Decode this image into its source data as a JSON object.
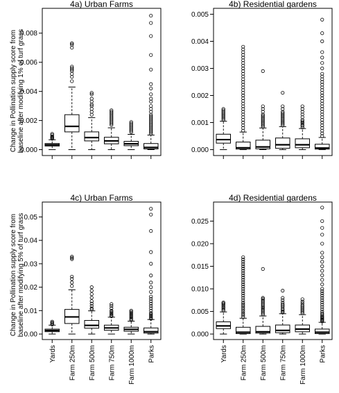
{
  "figure": {
    "ylabel_rows": [
      [
        "Change in Pollination supply score from",
        "baseline after modifying 1% of turf grass"
      ],
      [
        "Change in Pollination supply score from",
        "baseline after modifying 5% of turf grass"
      ]
    ],
    "category_labels": [
      "Yards",
      "Farm 250m",
      "Farm 500m",
      "Farm 750m",
      "Farm 1000m",
      "Parks"
    ]
  },
  "chart_data": [
    {
      "type": "box",
      "title": "4a)  Urban Farms",
      "categories": [
        "Yards",
        "Farm 250m",
        "Farm 500m",
        "Farm 750m",
        "Farm 1000m",
        "Parks"
      ],
      "ylim": [
        0,
        0.0093
      ],
      "yticks": [
        0.0,
        0.002,
        0.004,
        0.006,
        0.008
      ],
      "ytick_labels": [
        "0.000",
        "0.002",
        "0.004",
        "0.006",
        "0.008"
      ],
      "show_xlabels": false,
      "boxes": [
        {
          "category": "Yards",
          "whisker_low": 0.0,
          "q1": 0.00025,
          "median": 0.00033,
          "q3": 0.00042,
          "whisker_high": 0.00068,
          "outliers": [
            0.00075,
            0.0008,
            0.00085,
            0.0009,
            0.001,
            0.00108
          ]
        },
        {
          "category": "Farm 250m",
          "whisker_low": 0.0,
          "q1": 0.00122,
          "median": 0.0016,
          "q3": 0.0024,
          "whisker_high": 0.0043,
          "outliers": [
            0.0047,
            0.005,
            0.0052,
            0.0054,
            0.0055,
            0.0056,
            0.0057,
            0.007,
            0.0072,
            0.0073,
            0.0073
          ]
        },
        {
          "category": "Farm 500m",
          "whisker_low": 0.0,
          "q1": 0.0006,
          "median": 0.00083,
          "q3": 0.00122,
          "whisker_high": 0.0022,
          "outliers": [
            0.0024,
            0.0026,
            0.0028,
            0.003,
            0.0031,
            0.0033,
            0.0035,
            0.0038,
            0.0039
          ]
        },
        {
          "category": "Farm 750m",
          "whisker_low": 0.0,
          "q1": 0.0004,
          "median": 0.0006,
          "q3": 0.00085,
          "whisker_high": 0.0015,
          "outliers": [
            0.0017,
            0.0018,
            0.0019,
            0.002,
            0.0021,
            0.0022,
            0.0023,
            0.0024,
            0.0025,
            0.0026,
            0.0027
          ]
        },
        {
          "category": "Farm 1000m",
          "whisker_low": 0.0,
          "q1": 0.00027,
          "median": 0.0004,
          "q3": 0.00057,
          "whisker_high": 0.00105,
          "outliers": [
            0.0012,
            0.0013,
            0.0014,
            0.0015,
            0.0016,
            0.0017,
            0.0018,
            0.0019
          ]
        },
        {
          "category": "Parks",
          "whisker_low": 0.0,
          "q1": 5e-05,
          "median": 0.00015,
          "q3": 0.00042,
          "whisker_high": 0.001,
          "outliers": [
            0.0011,
            0.0012,
            0.0013,
            0.0014,
            0.0015,
            0.0016,
            0.0017,
            0.0018,
            0.0019,
            0.002,
            0.0021,
            0.0022,
            0.0023,
            0.0024,
            0.0026,
            0.0028,
            0.003,
            0.0033,
            0.0035,
            0.0038,
            0.0042,
            0.0045,
            0.0055,
            0.0065,
            0.0078,
            0.0087,
            0.0092
          ]
        }
      ]
    },
    {
      "type": "box",
      "title": "4b)  Residential gardens",
      "categories": [
        "Yards",
        "Farm 250m",
        "Farm 500m",
        "Farm 750m",
        "Farm 1000m",
        "Parks"
      ],
      "ylim": [
        0,
        0.005
      ],
      "yticks": [
        0.0,
        0.001,
        0.002,
        0.003,
        0.004,
        0.005
      ],
      "ytick_labels": [
        "0.000",
        "0.001",
        "0.002",
        "0.003",
        "0.004",
        "0.005"
      ],
      "show_xlabels": false,
      "boxes": [
        {
          "category": "Yards",
          "whisker_low": 0.0,
          "q1": 0.00024,
          "median": 0.00037,
          "q3": 0.00057,
          "whisker_high": 0.00105,
          "outliers": [
            0.0011,
            0.00115,
            0.0012,
            0.00125,
            0.0013,
            0.00135,
            0.0014,
            0.00145,
            0.0015
          ]
        },
        {
          "category": "Farm 250m",
          "whisker_low": 0.0,
          "q1": 2e-05,
          "median": 7e-05,
          "q3": 0.00028,
          "whisker_high": 0.00065,
          "outliers": [
            0.0007,
            0.0008,
            0.0009,
            0.001,
            0.0011,
            0.0012,
            0.0013,
            0.0014,
            0.0015,
            0.0016,
            0.0017,
            0.0018,
            0.0019,
            0.002,
            0.0021,
            0.0022,
            0.0023,
            0.0024,
            0.0025,
            0.0026,
            0.0027,
            0.0028,
            0.0029,
            0.003,
            0.0031,
            0.0032,
            0.0033,
            0.0034,
            0.0035,
            0.0036,
            0.0037,
            0.0038
          ]
        },
        {
          "category": "Farm 500m",
          "whisker_low": 0.0,
          "q1": 3e-05,
          "median": 0.0001,
          "q3": 0.00035,
          "whisker_high": 0.0008,
          "outliers": [
            0.00085,
            0.0009,
            0.00095,
            0.001,
            0.00105,
            0.0011,
            0.00115,
            0.0012,
            0.00125,
            0.0013,
            0.0014,
            0.0015,
            0.0016,
            0.0029
          ]
        },
        {
          "category": "Farm 750m",
          "whisker_low": 0.0,
          "q1": 5e-05,
          "median": 0.00018,
          "q3": 0.00043,
          "whisker_high": 0.00085,
          "outliers": [
            0.0009,
            0.00095,
            0.001,
            0.00105,
            0.0011,
            0.00115,
            0.0012,
            0.00125,
            0.0013,
            0.00135,
            0.0014,
            0.0015,
            0.0016,
            0.0021
          ]
        },
        {
          "category": "Farm 1000m",
          "whisker_low": 0.0,
          "q1": 7e-05,
          "median": 0.00018,
          "q3": 0.0004,
          "whisker_high": 0.00078,
          "outliers": [
            0.00082,
            0.00088,
            0.00092,
            0.00098,
            0.001,
            0.00105,
            0.0011,
            0.0012,
            0.0013,
            0.0014,
            0.0015,
            0.0016
          ]
        },
        {
          "category": "Parks",
          "whisker_low": 0.0,
          "q1": 2e-05,
          "median": 6e-05,
          "q3": 0.0002,
          "whisker_high": 0.00045,
          "outliers": [
            0.0005,
            0.0006,
            0.0007,
            0.0008,
            0.0009,
            0.001,
            0.0011,
            0.0012,
            0.0013,
            0.0014,
            0.0015,
            0.0016,
            0.0017,
            0.0018,
            0.0019,
            0.002,
            0.0021,
            0.0022,
            0.0023,
            0.0024,
            0.0025,
            0.0026,
            0.0027,
            0.0028,
            0.003,
            0.0032,
            0.0034,
            0.0036,
            0.004,
            0.0043,
            0.0048
          ]
        }
      ]
    },
    {
      "type": "box",
      "title": "4c)  Urban Farms",
      "categories": [
        "Yards",
        "Farm 250m",
        "Farm 500m",
        "Farm 750m",
        "Farm 1000m",
        "Parks"
      ],
      "ylim": [
        0,
        0.054
      ],
      "yticks": [
        0.0,
        0.01,
        0.02,
        0.03,
        0.04,
        0.05
      ],
      "ytick_labels": [
        "0.00",
        "0.01",
        "0.02",
        "0.03",
        "0.04",
        "0.05"
      ],
      "show_xlabels": true,
      "boxes": [
        {
          "category": "Yards",
          "whisker_low": 0.0,
          "q1": 0.001,
          "median": 0.0015,
          "q3": 0.0021,
          "whisker_high": 0.0038,
          "outliers": [
            0.0041,
            0.0045,
            0.0049,
            0.0053
          ]
        },
        {
          "category": "Farm 250m",
          "whisker_low": 0.0,
          "q1": 0.0045,
          "median": 0.0073,
          "q3": 0.0105,
          "whisker_high": 0.0189,
          "outliers": [
            0.0205,
            0.022,
            0.0235,
            0.0245,
            0.032,
            0.0325,
            0.033
          ]
        },
        {
          "category": "Farm 500m",
          "whisker_low": 0.0,
          "q1": 0.0025,
          "median": 0.0037,
          "q3": 0.0058,
          "whisker_high": 0.0099,
          "outliers": [
            0.0105,
            0.011,
            0.012,
            0.013,
            0.014,
            0.0155,
            0.017,
            0.0185,
            0.02
          ]
        },
        {
          "category": "Farm 750m",
          "whisker_low": 0.0,
          "q1": 0.0016,
          "median": 0.0026,
          "q3": 0.0038,
          "whisker_high": 0.0072,
          "outliers": [
            0.0076,
            0.008,
            0.0085,
            0.009,
            0.0095,
            0.01,
            0.011,
            0.012,
            0.0128
          ]
        },
        {
          "category": "Farm 1000m",
          "whisker_low": 0.0,
          "q1": 0.0012,
          "median": 0.002,
          "q3": 0.0029,
          "whisker_high": 0.0055,
          "outliers": [
            0.006,
            0.0065,
            0.007,
            0.0075,
            0.008,
            0.0085,
            0.009,
            0.0095,
            0.01
          ]
        },
        {
          "category": "Parks",
          "whisker_low": 0.0,
          "q1": 0.0004,
          "median": 0.001,
          "q3": 0.0026,
          "whisker_high": 0.0062,
          "outliers": [
            0.0065,
            0.007,
            0.0075,
            0.008,
            0.0085,
            0.009,
            0.01,
            0.011,
            0.012,
            0.013,
            0.014,
            0.015,
            0.016,
            0.018,
            0.02,
            0.022,
            0.025,
            0.03,
            0.035,
            0.044,
            0.051,
            0.0535
          ]
        }
      ]
    },
    {
      "type": "box",
      "title": "4d)  Residential gardens",
      "categories": [
        "Yards",
        "Farm 250m",
        "Farm 500m",
        "Farm 750m",
        "Farm 1000m",
        "Parks"
      ],
      "ylim": [
        0,
        0.028
      ],
      "yticks": [
        0.0,
        0.005,
        0.01,
        0.015,
        0.02,
        0.025
      ],
      "ytick_labels": [
        "0.000",
        "0.005",
        "0.010",
        "0.015",
        "0.020",
        "0.025"
      ],
      "show_xlabels": true,
      "boxes": [
        {
          "category": "Yards",
          "whisker_low": 0.0,
          "q1": 0.0012,
          "median": 0.0018,
          "q3": 0.0027,
          "whisker_high": 0.0049,
          "outliers": [
            0.0052,
            0.0055,
            0.0058,
            0.006,
            0.0063,
            0.0066,
            0.0068,
            0.007
          ]
        },
        {
          "category": "Farm 250m",
          "whisker_low": 0.0,
          "q1": 0.0001,
          "median": 0.0004,
          "q3": 0.0015,
          "whisker_high": 0.0035,
          "outliers": [
            0.0038,
            0.0042,
            0.0046,
            0.005,
            0.0054,
            0.0058,
            0.0062,
            0.0066,
            0.007,
            0.0075,
            0.008,
            0.0085,
            0.009,
            0.0095,
            0.01,
            0.0105,
            0.011,
            0.0115,
            0.012,
            0.0125,
            0.013,
            0.0135,
            0.014,
            0.0145,
            0.015,
            0.0155,
            0.016,
            0.0165,
            0.017
          ]
        },
        {
          "category": "Farm 500m",
          "whisker_low": 0.0,
          "q1": 0.0002,
          "median": 0.0005,
          "q3": 0.0017,
          "whisker_high": 0.004,
          "outliers": [
            0.0043,
            0.0046,
            0.0049,
            0.0052,
            0.0055,
            0.0058,
            0.006,
            0.0063,
            0.0066,
            0.0069,
            0.0072,
            0.0075,
            0.0078,
            0.008,
            0.0144
          ]
        },
        {
          "category": "Farm 750m",
          "whisker_low": 0.0,
          "q1": 0.0003,
          "median": 0.0008,
          "q3": 0.002,
          "whisker_high": 0.0045,
          "outliers": [
            0.0048,
            0.005,
            0.0053,
            0.0056,
            0.006,
            0.0063,
            0.0066,
            0.007,
            0.0075,
            0.008,
            0.0096
          ]
        },
        {
          "category": "Farm 1000m",
          "whisker_low": 0.0,
          "q1": 0.0005,
          "median": 0.0011,
          "q3": 0.002,
          "whisker_high": 0.0043,
          "outliers": [
            0.0046,
            0.0049,
            0.0052,
            0.0055,
            0.0058,
            0.0061,
            0.0064,
            0.0068,
            0.0072,
            0.0077
          ]
        },
        {
          "category": "Parks",
          "whisker_low": 0.0,
          "q1": 0.0001,
          "median": 0.0004,
          "q3": 0.0011,
          "whisker_high": 0.0026,
          "outliers": [
            0.0028,
            0.003,
            0.0032,
            0.0034,
            0.0036,
            0.0038,
            0.004,
            0.0043,
            0.0046,
            0.005,
            0.0055,
            0.006,
            0.0065,
            0.007,
            0.0075,
            0.008,
            0.0085,
            0.009,
            0.0095,
            0.01,
            0.011,
            0.012,
            0.013,
            0.014,
            0.015,
            0.016,
            0.017,
            0.018,
            0.02,
            0.022,
            0.0235,
            0.025,
            0.028
          ]
        }
      ]
    }
  ]
}
